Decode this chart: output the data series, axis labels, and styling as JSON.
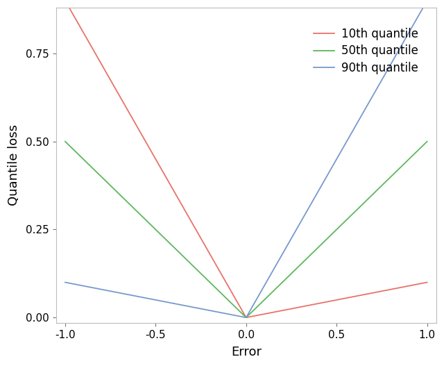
{
  "title": "",
  "xlabel": "Error",
  "ylabel": "Quantile loss",
  "xlim": [
    -1.05,
    1.05
  ],
  "ylim": [
    -0.015,
    0.88
  ],
  "quantiles": [
    0.1,
    0.5,
    0.9
  ],
  "colors": [
    "#E8726A",
    "#5CB85C",
    "#7799CC"
  ],
  "labels": [
    "10th quantile",
    "50th quantile",
    "90th quantile"
  ],
  "x_ticks": [
    -1.0,
    -0.5,
    0.0,
    0.5,
    1.0
  ],
  "y_ticks": [
    0.0,
    0.25,
    0.5,
    0.75
  ],
  "background_color": "#ffffff",
  "line_width": 1.3,
  "tick_label_size": 11,
  "axis_label_size": 13,
  "legend_fontsize": 12
}
